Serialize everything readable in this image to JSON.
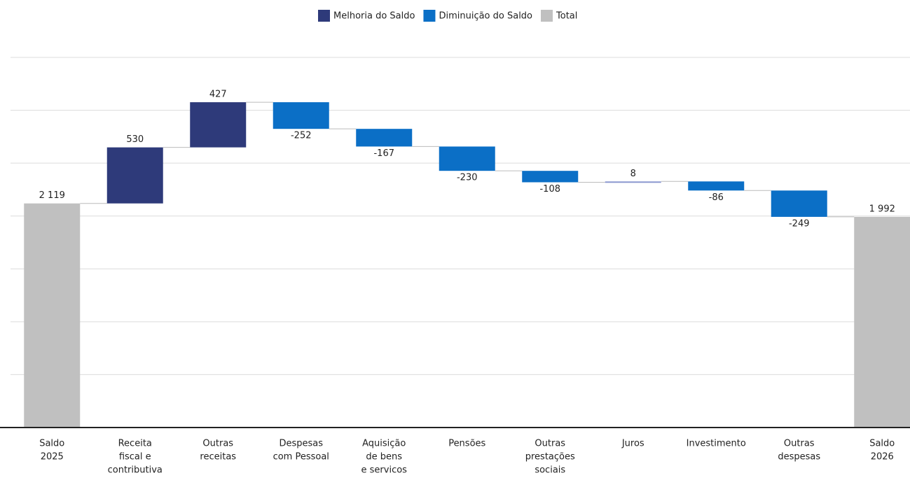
{
  "chart_data": {
    "type": "waterfall",
    "categories": [
      [
        "Saldo",
        "2025"
      ],
      [
        "Receita",
        "fiscal e",
        "contributiva"
      ],
      [
        "Outras",
        "receitas"
      ],
      [
        "Despesas",
        "com Pessoal"
      ],
      [
        "Aquisição",
        "de bens",
        "e servicos"
      ],
      [
        "Pensões"
      ],
      [
        "Outras",
        "prestações",
        "sociais"
      ],
      [
        "Juros"
      ],
      [
        "Investimento"
      ],
      [
        "Outras",
        "despesas"
      ],
      [
        "Saldo",
        "2026"
      ]
    ],
    "series": [
      {
        "name": "Melhoria do Saldo",
        "color": "#2e3a7a",
        "values": [
          null,
          530,
          427,
          null,
          null,
          null,
          null,
          8,
          null,
          null,
          null
        ]
      },
      {
        "name": "Diminuição do Saldo",
        "color": "#0b6fc6",
        "values": [
          null,
          null,
          null,
          -252,
          -167,
          -230,
          -108,
          null,
          -86,
          -249,
          null
        ]
      },
      {
        "name": "Total",
        "color": "#c0c0c0",
        "values": [
          2119,
          null,
          null,
          null,
          null,
          null,
          null,
          null,
          null,
          null,
          1992
        ],
        "value_labels": [
          "2 119",
          null,
          null,
          null,
          null,
          null,
          null,
          null,
          null,
          null,
          "1 992"
        ]
      }
    ],
    "ylim": [
      0,
      3500
    ],
    "yticks": [
      0,
      500,
      1000,
      1500,
      2000,
      2500,
      3000,
      3500
    ],
    "grid": true,
    "legend": "top"
  }
}
